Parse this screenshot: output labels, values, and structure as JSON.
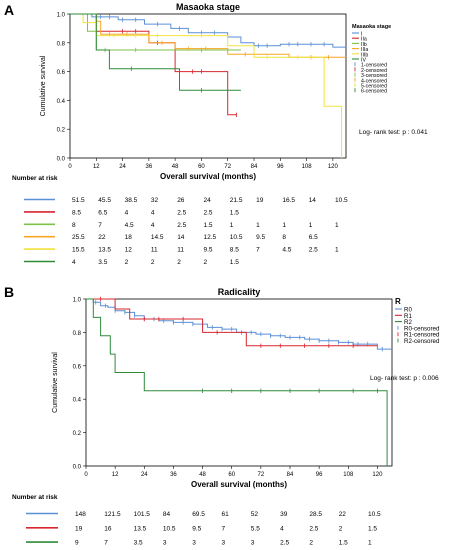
{
  "panels": {
    "a": {
      "letter": "A"
    },
    "b": {
      "letter": "B"
    }
  },
  "chart_data": [
    {
      "type": "line",
      "subtype": "kaplan-meier",
      "title": "Masaoka stage",
      "xlabel": "Overall survival (months)",
      "ylabel": "Cumulative survival",
      "xlim": [
        0,
        126
      ],
      "ylim": [
        0,
        1.0
      ],
      "xticks": [
        0,
        12,
        24,
        36,
        48,
        60,
        72,
        84,
        96,
        108,
        120
      ],
      "yticks": [
        0.0,
        0.2,
        0.4,
        0.6,
        0.8,
        1.0
      ],
      "grid": false,
      "legend_title": "Masaoka stage",
      "legend_position": "right",
      "legend": [
        "I",
        "IIa",
        "IIb",
        "IIIa",
        "IIIb",
        "IV",
        "1-censored",
        "2-censored",
        "3-censored",
        "4-censored",
        "5-censored",
        "6-censored"
      ],
      "annotation": "Log- rank test: p : 0.041",
      "risk_table_title": "Number at risk",
      "series": [
        {
          "name": "I",
          "color": "#5b8fd6",
          "steps": [
            [
              0,
              1.0
            ],
            [
              10,
              0.98
            ],
            [
              22,
              0.96
            ],
            [
              34,
              0.93
            ],
            [
              46,
              0.9
            ],
            [
              54,
              0.87
            ],
            [
              72,
              0.84
            ],
            [
              78,
              0.8
            ],
            [
              84,
              0.78
            ],
            [
              96,
              0.79
            ],
            [
              120,
              0.77
            ],
            [
              126,
              0.77
            ]
          ],
          "censored": [
            14,
            18,
            24,
            30,
            40,
            50,
            60,
            66,
            86,
            90,
            100,
            104,
            110,
            116
          ]
        },
        {
          "name": "IIa",
          "color": "#d7262e",
          "steps": [
            [
              0,
              1.0
            ],
            [
              12,
              0.88
            ],
            [
              36,
              0.8
            ],
            [
              48,
              0.6
            ],
            [
              70,
              0.6
            ],
            [
              72,
              0.3
            ],
            [
              76,
              0.3
            ]
          ],
          "censored": [
            24,
            30,
            40,
            56,
            60,
            76
          ]
        },
        {
          "name": "IIb",
          "color": "#7cc244",
          "steps": [
            [
              0,
              1.0
            ],
            [
              8,
              0.88
            ],
            [
              12,
              0.75
            ],
            [
              24,
              0.75
            ],
            [
              48,
              0.75
            ],
            [
              72,
              0.75
            ],
            [
              78,
              0.75
            ]
          ],
          "censored": [
            16,
            30,
            60,
            72
          ]
        },
        {
          "name": "IIIa",
          "color": "#f5a623",
          "steps": [
            [
              0,
              1.0
            ],
            [
              12,
              0.95
            ],
            [
              14,
              0.86
            ],
            [
              36,
              0.8
            ],
            [
              48,
              0.76
            ],
            [
              72,
              0.72
            ],
            [
              90,
              0.72
            ],
            [
              100,
              0.7
            ],
            [
              126,
              0.7
            ]
          ],
          "censored": [
            18,
            26,
            42,
            54,
            62,
            80,
            110,
            118
          ]
        },
        {
          "name": "IIIb",
          "color": "#f2e33a",
          "steps": [
            [
              0,
              1.0
            ],
            [
              6,
              0.94
            ],
            [
              12,
              0.85
            ],
            [
              72,
              0.78
            ],
            [
              84,
              0.7
            ],
            [
              96,
              0.7
            ],
            [
              114,
              0.7
            ],
            [
              116,
              0.36
            ],
            [
              122,
              0.36
            ],
            [
              124,
              0.0
            ]
          ],
          "censored": [
            20,
            30,
            40,
            60,
            90,
            104
          ]
        },
        {
          "name": "IV",
          "color": "#2e8b3a",
          "steps": [
            [
              0,
              1.0
            ],
            [
              12,
              0.75
            ],
            [
              18,
              0.62
            ],
            [
              36,
              0.62
            ],
            [
              50,
              0.47
            ],
            [
              70,
              0.47
            ],
            [
              78,
              0.47
            ]
          ],
          "censored": [
            28,
            60
          ]
        }
      ],
      "risk_table": [
        {
          "color": "#5b8fd6",
          "values": [
            "51.5",
            "45.5",
            "38.5",
            "32",
            "26",
            "24",
            "21.5",
            "19",
            "16.5",
            "14",
            "10.5"
          ]
        },
        {
          "color": "#d7262e",
          "values": [
            "8.5",
            "6.5",
            "4",
            "4",
            "2.5",
            "2.5",
            "1.5",
            "",
            "",
            "",
            ""
          ]
        },
        {
          "color": "#7cc244",
          "values": [
            "8",
            "7",
            "4.5",
            "4",
            "2.5",
            "1.5",
            "1",
            "1",
            "1",
            "1",
            "1"
          ]
        },
        {
          "color": "#f5a623",
          "values": [
            "25.5",
            "22",
            "18",
            "14.5",
            "14",
            "12.5",
            "10.5",
            "9.5",
            "8",
            "6.5",
            ""
          ]
        },
        {
          "color": "#f2e33a",
          "values": [
            "15.5",
            "13.5",
            "12",
            "11",
            "11",
            "9.5",
            "8.5",
            "7",
            "4.5",
            "2.5",
            "1"
          ]
        },
        {
          "color": "#2e8b3a",
          "values": [
            "4",
            "3.5",
            "2",
            "2",
            "2",
            "2",
            "1.5",
            "",
            "",
            "",
            ""
          ]
        }
      ]
    },
    {
      "type": "line",
      "subtype": "kaplan-meier",
      "title": "Radicality",
      "xlabel": "Overall survival (months)",
      "ylabel": "Cumulative survival",
      "xlim": [
        0,
        126
      ],
      "ylim": [
        0,
        1.0
      ],
      "xticks": [
        0,
        12,
        24,
        36,
        48,
        60,
        72,
        84,
        96,
        108,
        120
      ],
      "yticks": [
        0.0,
        0.2,
        0.4,
        0.6,
        0.8,
        1.0
      ],
      "grid": false,
      "legend_title": "R",
      "legend_position": "right",
      "legend": [
        "R0",
        "R1",
        "R2",
        "R0-censored",
        "R1-censored",
        "R2-censored"
      ],
      "annotation": "Log- rank test: p : 0.006",
      "risk_table_title": "Number at risk",
      "series": [
        {
          "name": "R0",
          "color": "#5b8fd6",
          "steps": [
            [
              0,
              1.0
            ],
            [
              3,
              0.98
            ],
            [
              6,
              0.96
            ],
            [
              9,
              0.95
            ],
            [
              12,
              0.93
            ],
            [
              16,
              0.92
            ],
            [
              20,
              0.9
            ],
            [
              24,
              0.88
            ],
            [
              30,
              0.87
            ],
            [
              36,
              0.86
            ],
            [
              44,
              0.85
            ],
            [
              50,
              0.83
            ],
            [
              56,
              0.82
            ],
            [
              62,
              0.8
            ],
            [
              70,
              0.79
            ],
            [
              76,
              0.78
            ],
            [
              82,
              0.77
            ],
            [
              90,
              0.76
            ],
            [
              96,
              0.75
            ],
            [
              104,
              0.74
            ],
            [
              110,
              0.73
            ],
            [
              118,
              0.73
            ],
            [
              120,
              0.7
            ],
            [
              126,
              0.7
            ]
          ],
          "censored": [
            4,
            8,
            12,
            16,
            20,
            24,
            28,
            32,
            36,
            40,
            44,
            48,
            52,
            56,
            60,
            64,
            68,
            72,
            76,
            80,
            84,
            88,
            92,
            96,
            100,
            104,
            108,
            112,
            116,
            122
          ]
        },
        {
          "name": "R1",
          "color": "#d7262e",
          "steps": [
            [
              0,
              1.0
            ],
            [
              12,
              0.94
            ],
            [
              18,
              0.88
            ],
            [
              48,
              0.8
            ],
            [
              60,
              0.8
            ],
            [
              66,
              0.72
            ],
            [
              120,
              0.72
            ]
          ],
          "censored": [
            6,
            24,
            30,
            40,
            54,
            72,
            80,
            90,
            100,
            110
          ]
        },
        {
          "name": "R2",
          "color": "#2e8b3a",
          "steps": [
            [
              0,
              1.0
            ],
            [
              3,
              0.89
            ],
            [
              6,
              0.78
            ],
            [
              10,
              0.67
            ],
            [
              12,
              0.56
            ],
            [
              24,
              0.45
            ],
            [
              124,
              0.45
            ],
            [
              124,
              0.0
            ]
          ],
          "censored": [
            48,
            60,
            72,
            84,
            96,
            110,
            120
          ]
        }
      ],
      "risk_table": [
        {
          "color": "#5b8fd6",
          "values": [
            "148",
            "121.5",
            "101.5",
            "84",
            "69.5",
            "61",
            "52",
            "39",
            "28.5",
            "22",
            "10.5"
          ]
        },
        {
          "color": "#d7262e",
          "values": [
            "19",
            "16",
            "13.5",
            "10.5",
            "9.5",
            "7",
            "5.5",
            "4",
            "2.5",
            "2",
            "1.5"
          ]
        },
        {
          "color": "#2e8b3a",
          "values": [
            "9",
            "7",
            "3.5",
            "3",
            "3",
            "3",
            "3",
            "2.5",
            "2",
            "1.5",
            "1"
          ]
        }
      ]
    }
  ]
}
